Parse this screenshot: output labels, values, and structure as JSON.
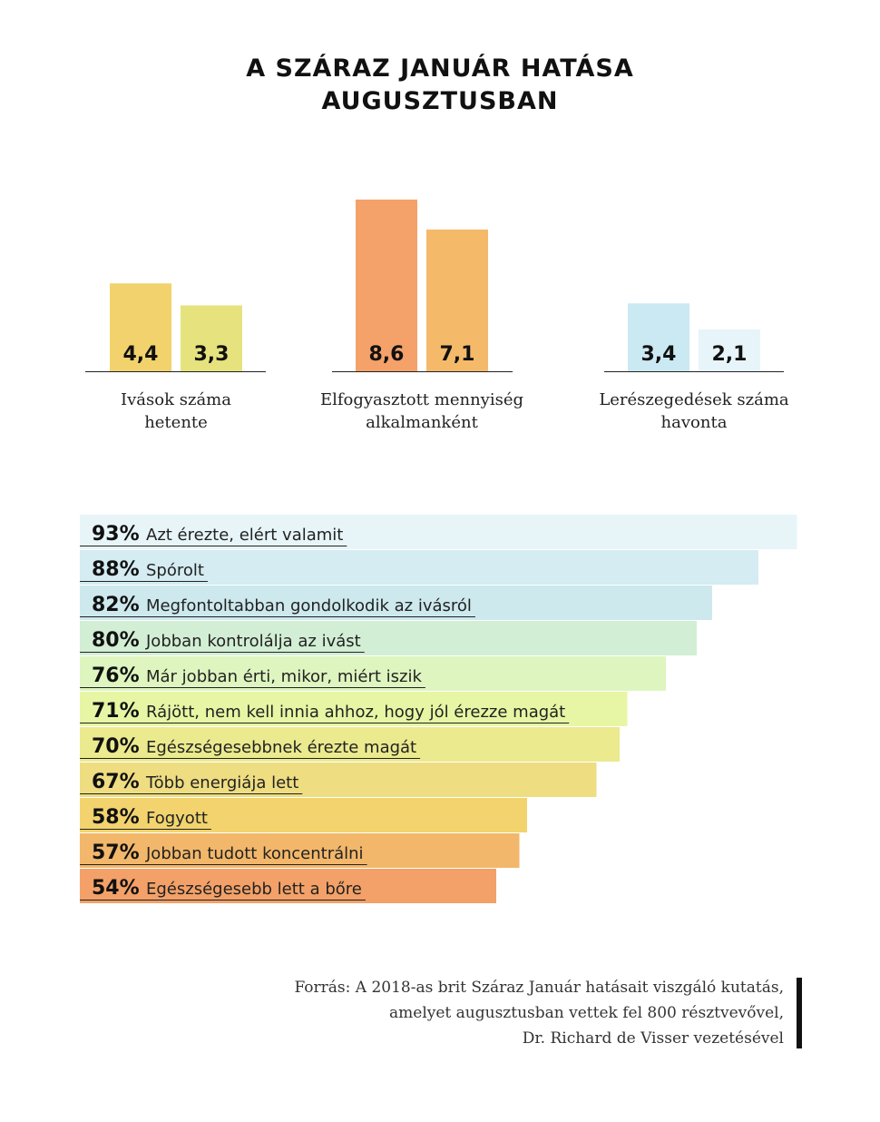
{
  "title_lines": [
    "A SZÁRAZ JANUÁR HATÁSA",
    "AUGUSZTUSBAN"
  ],
  "chart_data": [
    {
      "type": "bar",
      "categories": [
        "Ivások száma hetente",
        "Elfogyasztott mennyiség alkalmanként",
        "Lerészegedések száma havonta"
      ],
      "category_lines": [
        [
          "Ivások száma",
          "hetente"
        ],
        [
          "Elfogyasztott mennyiség",
          "alkalmanként"
        ],
        [
          "Lerészegedések száma",
          "havonta"
        ]
      ],
      "value_labels": [
        [
          "4,4",
          "3,3"
        ],
        [
          "8,6",
          "7,1"
        ],
        [
          "3,4",
          "2,1"
        ]
      ],
      "series": [
        {
          "values": [
            4.4,
            8.6,
            3.4
          ],
          "colors": [
            "#f2d26c",
            "#f4a16a",
            "#cbe9f2"
          ]
        },
        {
          "values": [
            3.3,
            7.1,
            2.1
          ],
          "colors": [
            "#e6e37f",
            "#f4ba6a",
            "#e7f4f9"
          ]
        }
      ]
    },
    {
      "type": "bar",
      "orientation": "horizontal",
      "unit": "%",
      "xlim": [
        0,
        100
      ],
      "items": [
        {
          "value": 93,
          "pct": "93%",
          "label": "Azt érezte, elért valamit",
          "color": "#e7f5f9"
        },
        {
          "value": 88,
          "pct": "88%",
          "label": "Spórolt",
          "color": "#d4ecf2"
        },
        {
          "value": 82,
          "pct": "82%",
          "label": "Megfontoltabban gondolkodik az ivásról",
          "color": "#cde9ed"
        },
        {
          "value": 80,
          "pct": "80%",
          "label": "Jobban kontrolálja az ivást",
          "color": "#d2eed4"
        },
        {
          "value": 76,
          "pct": "76%",
          "label": "Már jobban érti, mikor, miért iszik",
          "color": "#def5bf"
        },
        {
          "value": 71,
          "pct": "71%",
          "label": "Rájött, nem kell innia ahhoz, hogy jól érezze magát",
          "color": "#e6f6a4"
        },
        {
          "value": 70,
          "pct": "70%",
          "label": "Egészségesebbnek érezte magát",
          "color": "#ebea8f"
        },
        {
          "value": 67,
          "pct": "67%",
          "label": "Több energiája lett",
          "color": "#eedd81"
        },
        {
          "value": 58,
          "pct": "58%",
          "label": "Fogyott",
          "color": "#f2d36e"
        },
        {
          "value": 57,
          "pct": "57%",
          "label": "Jobban tudott koncentrálni",
          "color": "#f2b76b"
        },
        {
          "value": 54,
          "pct": "54%",
          "label": "Egészségesebb lett a bőre",
          "color": "#f3a168"
        }
      ]
    }
  ],
  "source_lines": [
    "Forrás: A 2018-as brit Száraz Január hatásait viszgáló kutatás,",
    "amelyet augusztusban vettek fel 800 résztvevővel,",
    "Dr. Richard de Visser vezetésével"
  ]
}
